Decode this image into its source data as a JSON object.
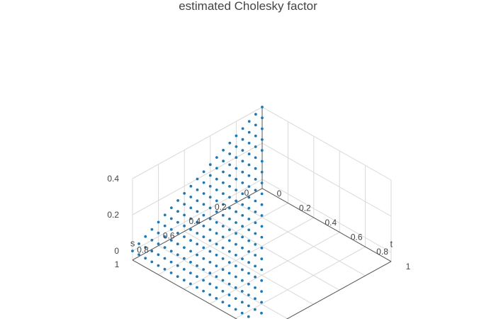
{
  "chart_data": {
    "type": "scatter3d",
    "title": "estimated Cholesky factor",
    "x_axis": {
      "label": "s",
      "ticks": [
        0,
        0.2,
        0.4,
        0.6,
        0.8,
        1
      ],
      "tick_labels": [
        "0",
        "0.2",
        "0.4",
        "0.6",
        "0.8",
        "1"
      ],
      "range": [
        0,
        1
      ]
    },
    "y_axis": {
      "label": "t",
      "ticks": [
        0,
        0.2,
        0.4,
        0.6,
        0.8,
        1
      ],
      "tick_labels": [
        "0",
        "0.2",
        "0.4",
        "0.6",
        "0.8",
        "1"
      ],
      "range": [
        0,
        1
      ]
    },
    "z_axis": {
      "label": "",
      "ticks": [
        0,
        0.2,
        0.4
      ],
      "tick_labels": [
        "0",
        "0.2",
        "0.4"
      ],
      "range": [
        -0.05,
        0.4
      ]
    },
    "grid_step": 0.05,
    "surface": "z = (1 - s) * 0.4 for t <= s (lower-triangular factor, sampled on a 0.05 grid)",
    "z_slope": -0.4,
    "z_intercept": 0.4,
    "colors": {
      "marker": "#1f77b4",
      "grid": "#d9d9d9",
      "axis": "#555555",
      "text": "#444444"
    }
  }
}
